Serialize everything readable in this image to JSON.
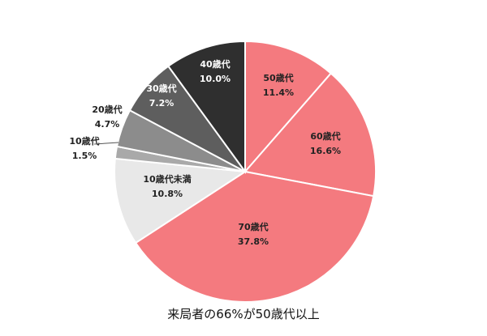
{
  "chart_data": {
    "type": "pie",
    "caption": "来局者の66%が50歳代以上",
    "slices": [
      {
        "label": "50歳代",
        "value_text": "11.4%",
        "value": 11.4,
        "color": "#f47a7f"
      },
      {
        "label": "60歳代",
        "value_text": "16.6%",
        "value": 16.6,
        "color": "#f47a7f"
      },
      {
        "label": "70歳代",
        "value_text": "37.8%",
        "value": 37.8,
        "color": "#f47a7f"
      },
      {
        "label": "10歳代未満",
        "value_text": "10.8%",
        "value": 10.8,
        "color": "#e8e8e8"
      },
      {
        "label": "10歳代",
        "value_text": "1.5%",
        "value": 1.5,
        "color": "#a9a9a9"
      },
      {
        "label": "20歳代",
        "value_text": "4.7%",
        "value": 4.7,
        "color": "#8c8c8c"
      },
      {
        "label": "30歳代",
        "value_text": "7.2%",
        "value": 7.2,
        "color": "#5e5e5e"
      },
      {
        "label": "40歳代",
        "value_text": "10.0%",
        "value": 10.0,
        "color": "#2f2f2f"
      }
    ]
  }
}
